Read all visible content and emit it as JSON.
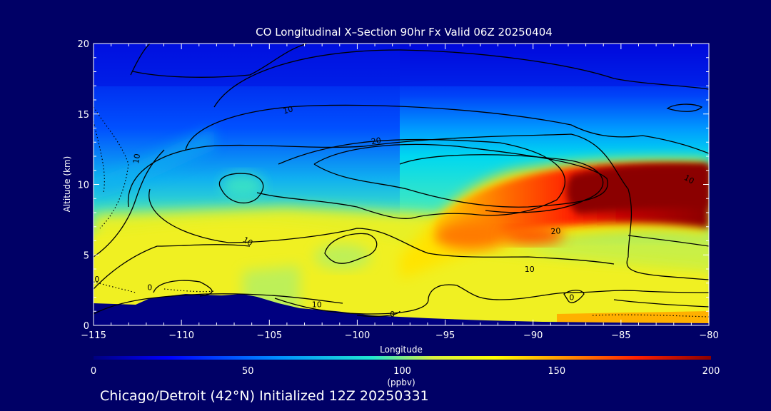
{
  "chart_data": {
    "type": "heatmap",
    "title": "CO Longitudinal X–Section 90hr  Fx Valid 06Z 20250404",
    "xlabel": "Longitude",
    "ylabel": "Altitude (km)",
    "xlim": [
      -115,
      -80
    ],
    "ylim": [
      0,
      20
    ],
    "xticks": [
      -115,
      -110,
      -105,
      -100,
      -95,
      -90,
      -85,
      -80
    ],
    "yticks": [
      0,
      5,
      10,
      15,
      20
    ],
    "xtick_labels": [
      "−115",
      "−110",
      "−105",
      "−100",
      "−95",
      "−90",
      "−85",
      "−80"
    ],
    "ytick_labels": [
      "0",
      "5",
      "10",
      "15",
      "20"
    ],
    "colorbar": {
      "min": 0,
      "max": 200,
      "ticks": [
        0,
        50,
        100,
        150,
        200
      ],
      "tick_labels": [
        "0",
        "50",
        "100",
        "150",
        "200"
      ],
      "unit": "(ppbv)"
    },
    "field_notes": "CO mixing ratio: ~30 ppbv above 15 km, peak >200 ppbv near 8-11 km east of -88, ~100-120 ppbv below 6 km",
    "contour_labels": [
      {
        "text": "10",
        "lon": -112.4,
        "alt": 11.8,
        "rot": -80
      },
      {
        "text": "10",
        "lon": -103.9,
        "alt": 15.1,
        "rot": -15
      },
      {
        "text": "20",
        "lon": -98.9,
        "alt": 12.9,
        "rot": -10
      },
      {
        "text": "10",
        "lon": -106.3,
        "alt": 5.8,
        "rot": 30
      },
      {
        "text": "20",
        "lon": -88.7,
        "alt": 6.5,
        "rot": -5
      },
      {
        "text": "10",
        "lon": -90.2,
        "alt": 3.8,
        "rot": 0
      },
      {
        "text": "10",
        "lon": -81.2,
        "alt": 10.2,
        "rot": 30
      },
      {
        "text": "0",
        "lon": -114.8,
        "alt": 3.1,
        "rot": 0
      },
      {
        "text": "0",
        "lon": -111.8,
        "alt": 2.5,
        "rot": 0
      },
      {
        "text": "10",
        "lon": -102.3,
        "alt": 1.3,
        "rot": 0
      },
      {
        "text": "0",
        "lon": -98.0,
        "alt": 0.6,
        "rot": 0
      },
      {
        "text": "0",
        "lon": -87.8,
        "alt": 1.8,
        "rot": 0
      }
    ]
  },
  "footer": {
    "caption": "Chicago/Detroit (42°N) Initialized 12Z 20250331"
  },
  "colors": {
    "background": "#000066",
    "text": "#ffffff",
    "contour": "#000000",
    "terrain": "#000080"
  }
}
